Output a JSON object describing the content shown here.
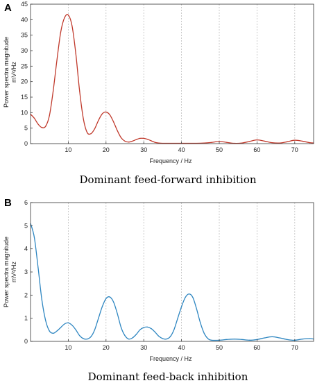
{
  "chart_data": [
    {
      "type": "line",
      "panel_label": "A",
      "caption": "Dominant feed-forward inhibition",
      "xlabel": "Frequency / Hz",
      "ylabel_line1": "Power  spectra magnitude",
      "ylabel_line2": "mV²/Hz",
      "xlim": [
        0,
        75
      ],
      "ylim": [
        0,
        45
      ],
      "xticks": [
        10,
        20,
        30,
        40,
        50,
        60,
        70
      ],
      "yticks": [
        0,
        5,
        10,
        15,
        20,
        25,
        30,
        35,
        40,
        45
      ],
      "grid": "vertical",
      "color": "#c0392b",
      "series": [
        {
          "x": [
            0,
            1,
            2,
            3,
            4,
            5,
            6,
            7,
            8,
            9,
            10,
            11,
            12,
            13,
            14,
            15,
            16,
            17,
            18,
            19,
            20,
            21,
            22,
            23,
            24,
            25,
            26,
            27,
            28,
            29,
            30,
            31,
            32,
            33,
            34,
            35,
            36,
            38,
            40,
            42,
            44,
            46,
            48,
            50,
            52,
            54,
            56,
            58,
            60,
            62,
            64,
            66,
            68,
            70,
            72,
            74,
            75
          ],
          "y": [
            9.5,
            8.2,
            6.3,
            5.2,
            5.6,
            9.0,
            17.0,
            27.0,
            36.0,
            40.6,
            41.5,
            38.0,
            29.0,
            17.0,
            8.0,
            3.6,
            3.2,
            4.8,
            7.5,
            9.6,
            10.2,
            9.3,
            7.0,
            4.2,
            1.9,
            0.8,
            0.5,
            0.8,
            1.3,
            1.7,
            1.7,
            1.4,
            0.9,
            0.4,
            0.2,
            0.1,
            0.1,
            0.1,
            0.1,
            0.1,
            0.1,
            0.2,
            0.4,
            0.7,
            0.4,
            0.1,
            0.2,
            0.7,
            1.2,
            0.8,
            0.3,
            0.2,
            0.6,
            1.1,
            0.8,
            0.3,
            0.2
          ]
        }
      ]
    },
    {
      "type": "line",
      "panel_label": "B",
      "caption": "Dominant feed-back inhibition",
      "xlabel": "Frequency / Hz",
      "ylabel_line1": "Power  spectra magnitude",
      "ylabel_line2": "mV²/Hz",
      "xlim": [
        0,
        75
      ],
      "ylim": [
        0,
        6
      ],
      "xticks": [
        10,
        20,
        30,
        40,
        50,
        60,
        70
      ],
      "yticks": [
        0,
        1,
        2,
        3,
        4,
        5,
        6
      ],
      "grid": "vertical",
      "color": "#2e86c1",
      "series": [
        {
          "x": [
            0,
            1,
            2,
            3,
            4,
            5,
            6,
            7,
            8,
            9,
            10,
            11,
            12,
            13,
            14,
            15,
            16,
            17,
            18,
            19,
            20,
            21,
            22,
            23,
            24,
            25,
            26,
            27,
            28,
            29,
            30,
            31,
            32,
            33,
            34,
            35,
            36,
            37,
            38,
            39,
            40,
            41,
            42,
            43,
            44,
            45,
            46,
            47,
            48,
            50,
            52,
            54,
            56,
            58,
            60,
            62,
            64,
            66,
            68,
            70,
            72,
            74,
            75
          ],
          "y": [
            5.1,
            4.5,
            3.2,
            1.8,
            0.9,
            0.45,
            0.35,
            0.45,
            0.6,
            0.75,
            0.8,
            0.7,
            0.5,
            0.25,
            0.12,
            0.1,
            0.2,
            0.5,
            1.0,
            1.5,
            1.85,
            1.92,
            1.7,
            1.2,
            0.6,
            0.25,
            0.1,
            0.15,
            0.3,
            0.5,
            0.6,
            0.62,
            0.55,
            0.4,
            0.22,
            0.12,
            0.1,
            0.2,
            0.5,
            1.0,
            1.5,
            1.9,
            2.05,
            1.9,
            1.4,
            0.8,
            0.35,
            0.12,
            0.05,
            0.05,
            0.08,
            0.1,
            0.08,
            0.05,
            0.08,
            0.15,
            0.2,
            0.15,
            0.08,
            0.05,
            0.1,
            0.12,
            0.1
          ]
        }
      ]
    }
  ]
}
